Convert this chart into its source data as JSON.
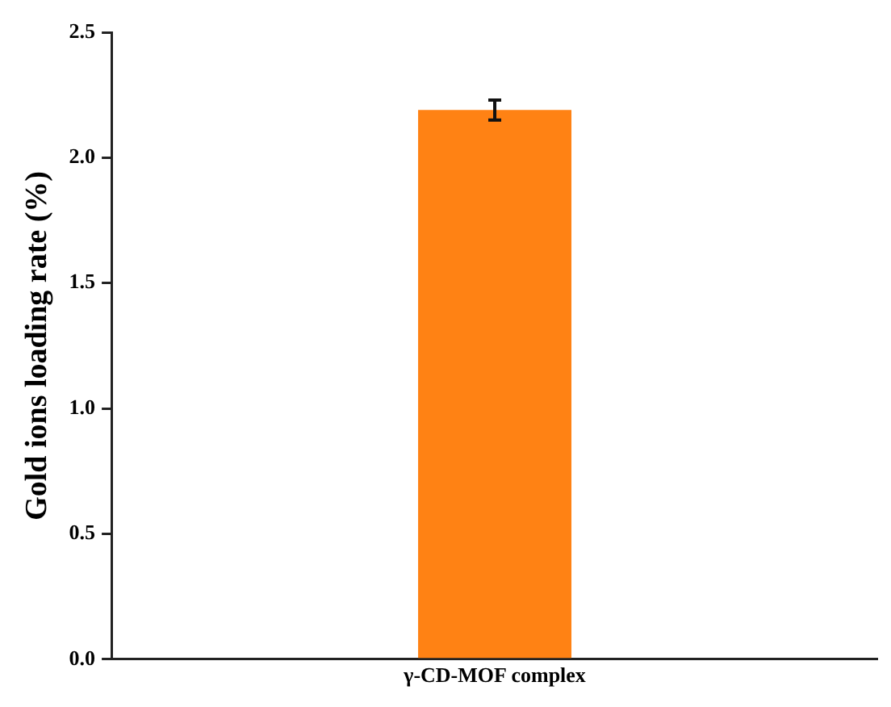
{
  "chart_data": {
    "type": "bar",
    "ylabel": "Gold ions loading rate (%)",
    "categories": [
      "γ-CD-MOF complex"
    ],
    "values": [
      2.19
    ],
    "errors": [
      0.04
    ],
    "color": "#ff8214",
    "ylim": [
      0,
      2.5
    ],
    "yticks": [
      {
        "value": 0,
        "label": "0.0"
      },
      {
        "value": 0.5,
        "label": "0.5"
      },
      {
        "value": 1,
        "label": "1.0"
      },
      {
        "value": 1.5,
        "label": "1.5"
      },
      {
        "value": 2,
        "label": "2.0"
      },
      {
        "value": 2.5,
        "label": "2.5"
      }
    ],
    "grid": false,
    "legend": false
  }
}
